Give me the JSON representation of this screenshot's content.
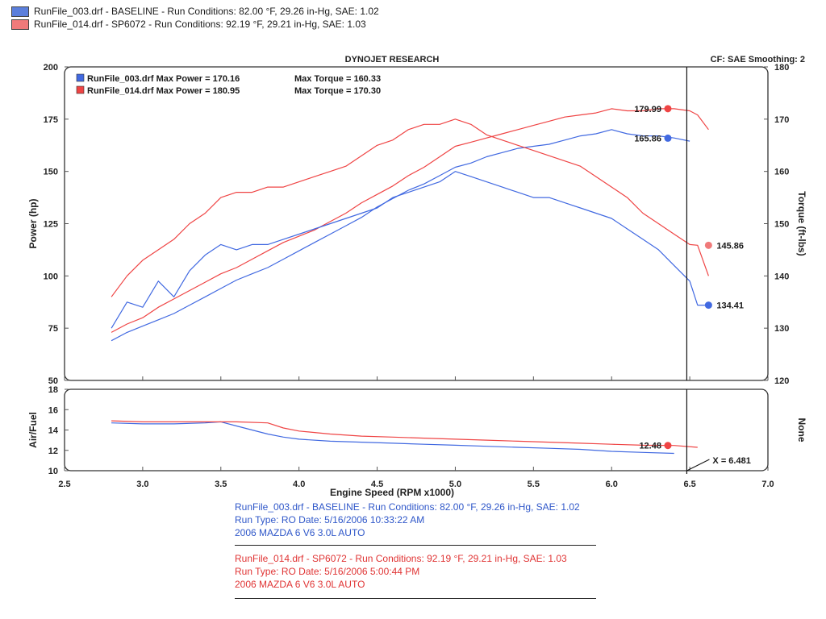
{
  "header": {
    "title": "DYNOJET RESEARCH",
    "cf_info": "CF: SAE  Smoothing: 2"
  },
  "top_legend": [
    {
      "text": "RunFile_003.drf - BASELINE  -  Run Conditions: 82.00 °F, 29.26 in-Hg, SAE: 1.02",
      "color": "#5b7fdc"
    },
    {
      "text": "RunFile_014.drf - SP6072  -  Run Conditions: 92.19 °F, 29.21 in-Hg, SAE: 1.03",
      "color": "#f07a7a"
    }
  ],
  "inner_legend": [
    {
      "text": "RunFile_003.drf Max Power = 170.16",
      "torque": "Max Torque = 160.33",
      "color": "#4169e1"
    },
    {
      "text": "RunFile_014.drf Max Power = 180.95",
      "torque": "Max Torque = 170.30",
      "color": "#ef4444"
    }
  ],
  "cursor_label": "X = 6.481",
  "footer": {
    "blue": [
      "RunFile_003.drf - BASELINE  -  Run Conditions: 82.00 °F, 29.26 in-Hg, SAE: 1.02",
      "Run Type: RO  Date: 5/16/2006 10:33:22 AM",
      "2006 MAZDA 6 V6 3.0L AUTO"
    ],
    "red": [
      "RunFile_014.drf - SP6072  -  Run Conditions: 92.19 °F, 29.21 in-Hg, SAE: 1.03",
      "Run Type: RO  Date: 5/16/2006 5:00:44 PM",
      "2006 MAZDA 6 V6 3.0L AUTO"
    ]
  },
  "chart_data": [
    {
      "type": "line",
      "title": "DYNOJET RESEARCH",
      "xlabel": "Engine Speed (RPM x1000)",
      "ylabel": "Power (hp)",
      "y2label": "Torque (ft-lbs)",
      "xlim": [
        2.5,
        7.0
      ],
      "ylim": [
        50,
        200
      ],
      "y2lim": [
        120,
        180
      ],
      "xticks": [
        "2.5",
        "3.0",
        "3.5",
        "4.0",
        "4.5",
        "5.0",
        "5.5",
        "6.0",
        "6.5",
        "7.0"
      ],
      "yticks": [
        "50",
        "75",
        "100",
        "125",
        "150",
        "175",
        "200"
      ],
      "y2ticks": [
        "120",
        "130",
        "140",
        "150",
        "160",
        "170",
        "180"
      ],
      "cursor_x": 6.481,
      "series": [
        {
          "name": "RunFile_003.drf Power",
          "axis": "left",
          "color": "#4169e1",
          "x": [
            2.8,
            2.9,
            3.0,
            3.1,
            3.2,
            3.3,
            3.4,
            3.5,
            3.6,
            3.7,
            3.8,
            3.9,
            4.0,
            4.1,
            4.2,
            4.3,
            4.4,
            4.5,
            4.6,
            4.7,
            4.8,
            4.9,
            5.0,
            5.1,
            5.2,
            5.3,
            5.4,
            5.5,
            5.6,
            5.7,
            5.8,
            5.9,
            6.0,
            6.1,
            6.2,
            6.3,
            6.4,
            6.5
          ],
          "y": [
            69,
            73,
            76,
            79,
            82,
            86,
            90,
            94,
            98,
            101,
            104,
            108,
            112,
            116,
            120,
            124,
            128,
            133,
            137,
            141,
            144,
            148,
            152,
            154,
            157,
            159,
            161,
            162,
            163,
            165,
            167,
            168,
            170,
            168,
            167,
            167,
            166,
            164.5
          ]
        },
        {
          "name": "RunFile_014.drf Power",
          "axis": "left",
          "color": "#ef4444",
          "x": [
            2.8,
            2.9,
            3.0,
            3.1,
            3.2,
            3.3,
            3.4,
            3.5,
            3.6,
            3.7,
            3.8,
            3.9,
            4.0,
            4.1,
            4.2,
            4.3,
            4.4,
            4.5,
            4.6,
            4.7,
            4.8,
            4.9,
            5.0,
            5.1,
            5.2,
            5.3,
            5.4,
            5.5,
            5.6,
            5.7,
            5.8,
            5.9,
            6.0,
            6.1,
            6.2,
            6.3,
            6.4,
            6.5,
            6.55,
            6.62
          ],
          "y": [
            73,
            77,
            80,
            85,
            89,
            93,
            97,
            101,
            104,
            108,
            112,
            116,
            119,
            122,
            126,
            130,
            135,
            139,
            143,
            148,
            152,
            157,
            162,
            164,
            166,
            168,
            170,
            172,
            174,
            176,
            177,
            178,
            180,
            179,
            179,
            180,
            180,
            179,
            177,
            170
          ]
        },
        {
          "name": "RunFile_003.drf Torque",
          "axis": "right",
          "color": "#4169e1",
          "x": [
            2.8,
            2.9,
            3.0,
            3.1,
            3.2,
            3.3,
            3.4,
            3.5,
            3.6,
            3.7,
            3.8,
            3.9,
            4.0,
            4.1,
            4.2,
            4.3,
            4.4,
            4.5,
            4.6,
            4.7,
            4.8,
            4.9,
            5.0,
            5.1,
            5.2,
            5.3,
            5.4,
            5.5,
            5.6,
            5.7,
            5.8,
            5.9,
            6.0,
            6.1,
            6.2,
            6.3,
            6.4,
            6.5,
            6.55,
            6.62
          ],
          "y": [
            130,
            135,
            134,
            139,
            136,
            141,
            144,
            146,
            145,
            146,
            146,
            147,
            148,
            149,
            150,
            151,
            152,
            153,
            155,
            156,
            157,
            158,
            160,
            159,
            158,
            157,
            156,
            155,
            155,
            154,
            153,
            152,
            151,
            149,
            147,
            145,
            142,
            139,
            134.41,
            134.41
          ]
        },
        {
          "name": "RunFile_014.drf Torque",
          "axis": "right",
          "color": "#ef4444",
          "x": [
            2.8,
            2.9,
            3.0,
            3.1,
            3.2,
            3.3,
            3.4,
            3.5,
            3.6,
            3.7,
            3.8,
            3.9,
            4.0,
            4.1,
            4.2,
            4.3,
            4.4,
            4.5,
            4.6,
            4.7,
            4.8,
            4.9,
            5.0,
            5.1,
            5.2,
            5.3,
            5.4,
            5.5,
            5.6,
            5.7,
            5.8,
            5.9,
            6.0,
            6.1,
            6.2,
            6.3,
            6.4,
            6.5,
            6.55,
            6.62
          ],
          "y": [
            136,
            140,
            143,
            145,
            147,
            150,
            152,
            155,
            156,
            156,
            157,
            157,
            158,
            159,
            160,
            161,
            163,
            165,
            166,
            168,
            169,
            169,
            170,
            169,
            167,
            166,
            165,
            164,
            163,
            162,
            161,
            159,
            157,
            155,
            152,
            150,
            148,
            146,
            145.86,
            140
          ]
        }
      ],
      "annotations": [
        {
          "text": "179.99",
          "x": 6.36,
          "y": 180,
          "axis": "left",
          "color": "#ef4444",
          "side": "left"
        },
        {
          "text": "165.86",
          "x": 6.36,
          "y": 165.9,
          "axis": "left",
          "color": "#4169e1",
          "side": "left"
        },
        {
          "text": "145.86",
          "x": 6.62,
          "y": 145.86,
          "axis": "right",
          "color": "#f07a7a",
          "side": "right"
        },
        {
          "text": "134.41",
          "x": 6.62,
          "y": 134.41,
          "axis": "right",
          "color": "#4169e1",
          "side": "right"
        }
      ]
    },
    {
      "type": "line",
      "ylabel": "Air/Fuel",
      "y2label": "None",
      "xlim": [
        2.5,
        7.0
      ],
      "ylim": [
        10,
        18
      ],
      "yticks": [
        "10",
        "12",
        "14",
        "16",
        "18"
      ],
      "series": [
        {
          "name": "RunFile_003.drf Air/Fuel",
          "color": "#4169e1",
          "x": [
            2.8,
            3.0,
            3.2,
            3.4,
            3.5,
            3.6,
            3.7,
            3.8,
            3.9,
            4.0,
            4.2,
            4.4,
            4.6,
            4.8,
            5.0,
            5.2,
            5.4,
            5.6,
            5.8,
            6.0,
            6.2,
            6.4
          ],
          "y": [
            14.7,
            14.6,
            14.6,
            14.7,
            14.8,
            14.4,
            14.0,
            13.6,
            13.3,
            13.1,
            12.9,
            12.8,
            12.7,
            12.6,
            12.5,
            12.4,
            12.3,
            12.2,
            12.1,
            11.9,
            11.8,
            11.7
          ]
        },
        {
          "name": "RunFile_014.drf Air/Fuel",
          "color": "#ef4444",
          "x": [
            2.8,
            3.0,
            3.2,
            3.4,
            3.6,
            3.8,
            3.9,
            4.0,
            4.2,
            4.4,
            4.6,
            4.8,
            5.0,
            5.2,
            5.4,
            5.6,
            5.8,
            6.0,
            6.2,
            6.4,
            6.55
          ],
          "y": [
            14.9,
            14.8,
            14.8,
            14.8,
            14.8,
            14.7,
            14.2,
            13.9,
            13.6,
            13.4,
            13.3,
            13.2,
            13.1,
            13.0,
            12.9,
            12.8,
            12.7,
            12.6,
            12.5,
            12.48,
            12.3
          ]
        }
      ],
      "annotations": [
        {
          "text": "12.48",
          "x": 6.36,
          "y": 12.48,
          "color": "#ef4444",
          "side": "left"
        }
      ]
    }
  ]
}
